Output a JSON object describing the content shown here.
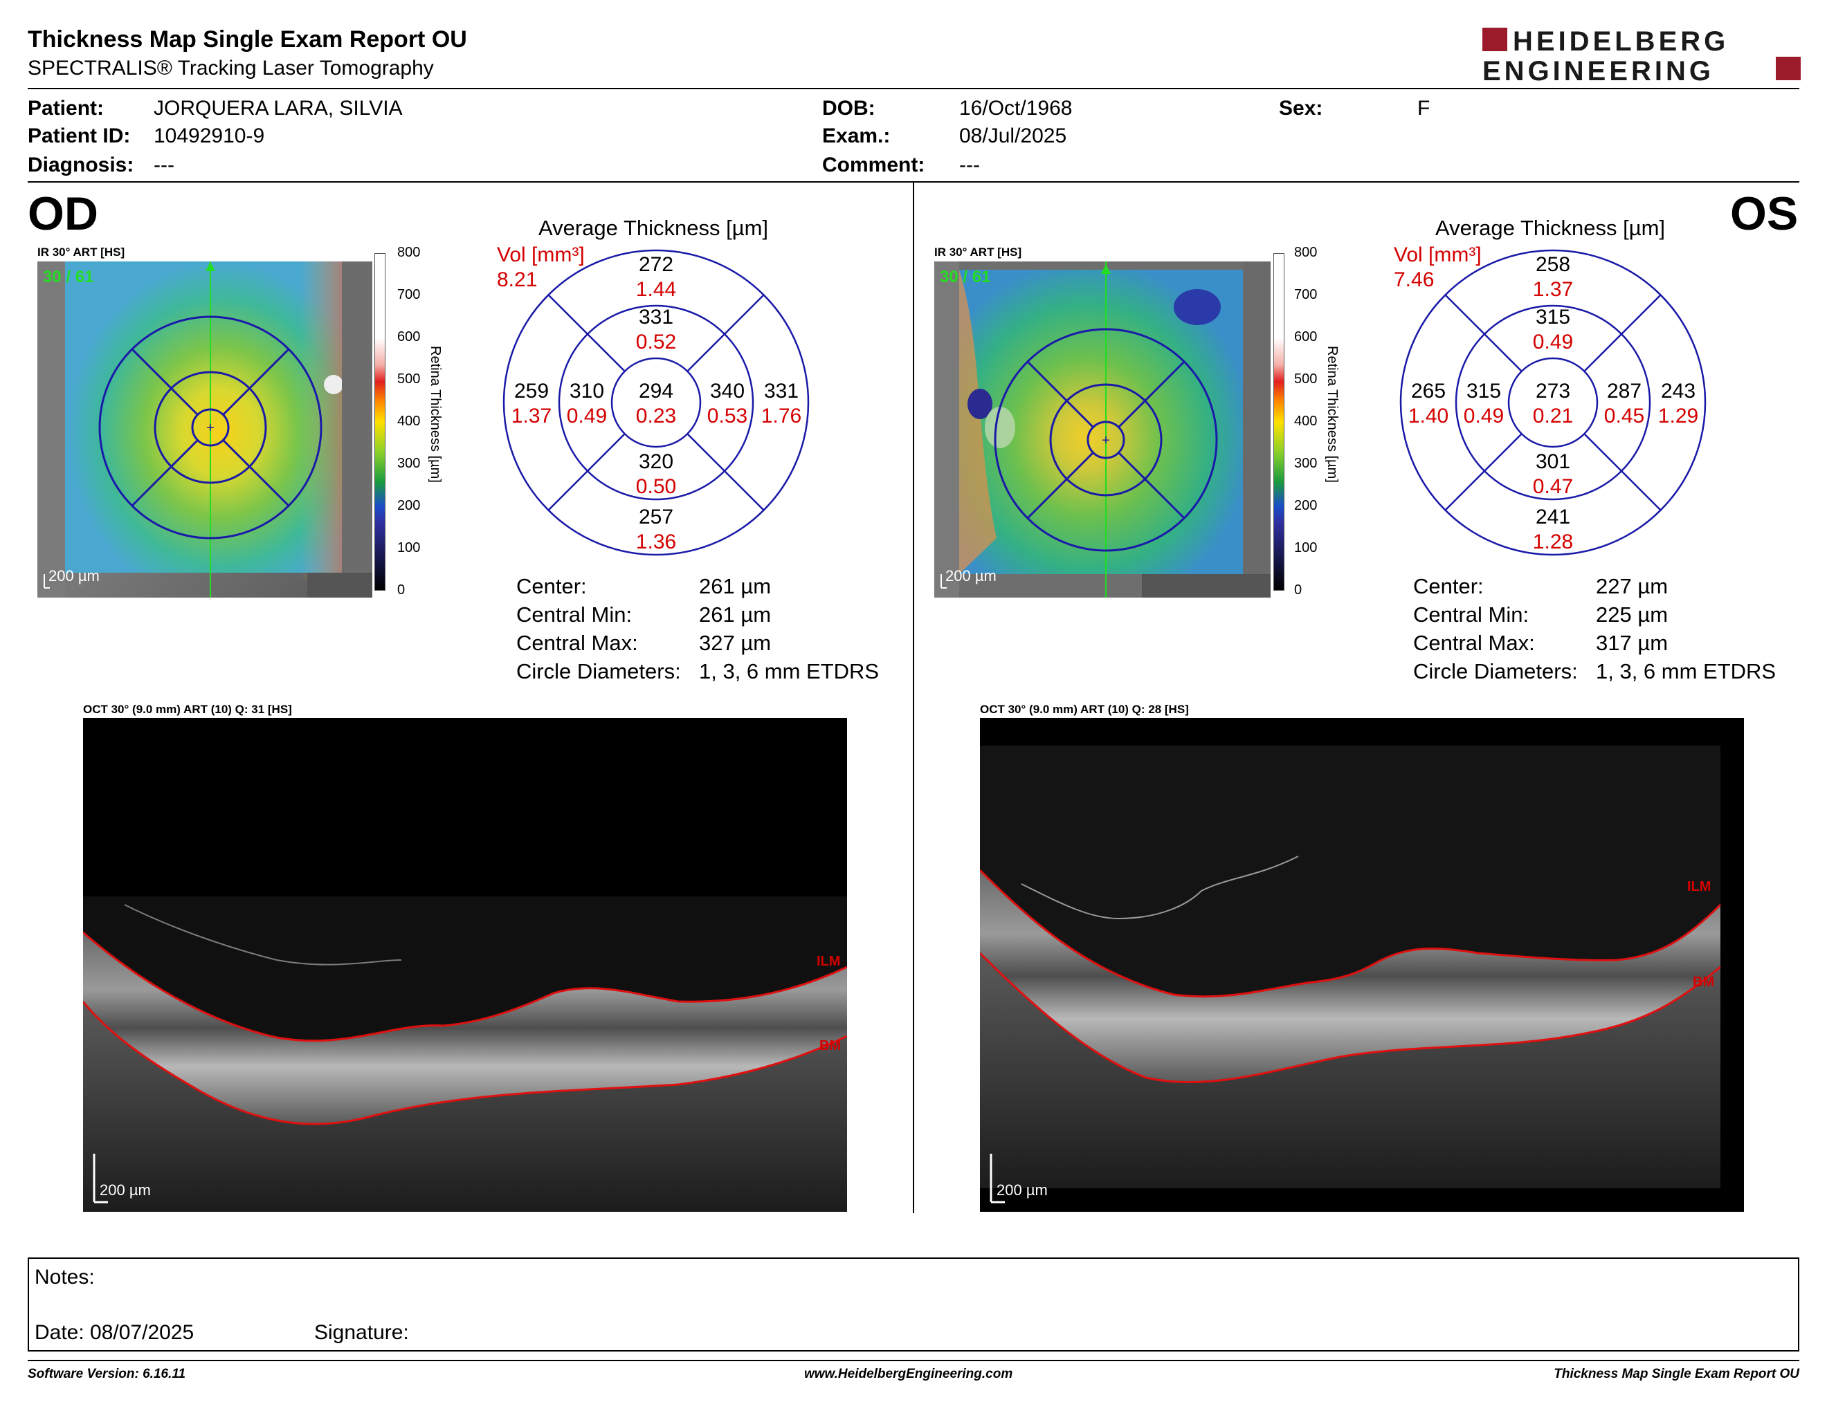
{
  "header": {
    "title": "Thickness Map Single Exam Report OU",
    "subtitle": "SPECTRALIS® Tracking Laser Tomography",
    "logo_line1": "HEIDELBERG",
    "logo_line2": "ENGINEERING",
    "brand_color": "#9b1b2a"
  },
  "patient": {
    "patient_label": "Patient:",
    "patient_value": "JORQUERA LARA, SILVIA",
    "id_label": "Patient ID:",
    "id_value": "10492910-9",
    "diagnosis_label": "Diagnosis:",
    "diagnosis_value": "---",
    "dob_label": "DOB:",
    "dob_value": "16/Oct/1968",
    "exam_label": "Exam.:",
    "exam_value": "08/Jul/2025",
    "comment_label": "Comment:",
    "comment_value": "---",
    "sex_label": "Sex:",
    "sex_value": "F"
  },
  "scale": {
    "ticks": [
      "800",
      "700",
      "600",
      "500",
      "400",
      "300",
      "200",
      "100",
      "0"
    ],
    "title": "Retina  Thickness [µm]"
  },
  "od": {
    "eye": "OD",
    "ir_label": "IR 30° ART [HS]",
    "ir_counter": "30 / 61",
    "ir_scalebar": "200 µm",
    "avg_title": "Average Thickness [µm]",
    "vol_label": "Vol [mm³]",
    "vol_value": "8.21",
    "sectors": {
      "outer_sup": {
        "t": "272",
        "v": "1.44"
      },
      "inner_sup": {
        "t": "331",
        "v": "0.52"
      },
      "outer_left": {
        "t": "259",
        "v": "1.37"
      },
      "inner_left": {
        "t": "310",
        "v": "0.49"
      },
      "center": {
        "t": "294",
        "v": "0.23"
      },
      "inner_right": {
        "t": "340",
        "v": "0.53"
      },
      "outer_right": {
        "t": "331",
        "v": "1.76"
      },
      "inner_inf": {
        "t": "320",
        "v": "0.50"
      },
      "outer_inf": {
        "t": "257",
        "v": "1.36"
      }
    },
    "stats": [
      {
        "label": "Center:",
        "value": "261 µm"
      },
      {
        "label": "Central Min:",
        "value": "261 µm"
      },
      {
        "label": "Central Max:",
        "value": "327 µm"
      },
      {
        "label": "Circle Diameters:",
        "value": "1, 3, 6 mm ETDRS"
      }
    ],
    "oct_label": "OCT 30° (9.0 mm) ART (10) Q: 31 [HS]",
    "oct_scalebar": "200 µm",
    "ilm": "ILM",
    "bm": "BM"
  },
  "os": {
    "eye": "OS",
    "ir_label": "IR 30° ART [HS]",
    "ir_counter": "30 / 61",
    "ir_scalebar": "200 µm",
    "avg_title": "Average Thickness [µm]",
    "vol_label": "Vol [mm³]",
    "vol_value": "7.46",
    "sectors": {
      "outer_sup": {
        "t": "258",
        "v": "1.37"
      },
      "inner_sup": {
        "t": "315",
        "v": "0.49"
      },
      "outer_left": {
        "t": "265",
        "v": "1.40"
      },
      "inner_left": {
        "t": "315",
        "v": "0.49"
      },
      "center": {
        "t": "273",
        "v": "0.21"
      },
      "inner_right": {
        "t": "287",
        "v": "0.45"
      },
      "outer_right": {
        "t": "243",
        "v": "1.29"
      },
      "inner_inf": {
        "t": "301",
        "v": "0.47"
      },
      "outer_inf": {
        "t": "241",
        "v": "1.28"
      }
    },
    "stats": [
      {
        "label": "Center:",
        "value": "227 µm"
      },
      {
        "label": "Central Min:",
        "value": "225 µm"
      },
      {
        "label": "Central Max:",
        "value": "317 µm"
      },
      {
        "label": "Circle Diameters:",
        "value": "1, 3, 6 mm ETDRS"
      }
    ],
    "oct_label": "OCT 30° (9.0 mm) ART (10) Q: 28 [HS]",
    "oct_scalebar": "200 µm",
    "ilm": "ILM",
    "bm": "BM"
  },
  "notes": {
    "notes_label": "Notes:",
    "date_label": "Date: 08/07/2025",
    "signature_label": "Signature:"
  },
  "footer": {
    "software": "Software Version: 6.16.11",
    "website": "www.HeidelbergEngineering.com",
    "report": "Thickness Map Single Exam Report OU"
  },
  "colors": {
    "etdrs_grid": "#1a1aa8",
    "values_red": "#d40000",
    "segmentation": "#e01010",
    "center_line": "#22dd22"
  }
}
